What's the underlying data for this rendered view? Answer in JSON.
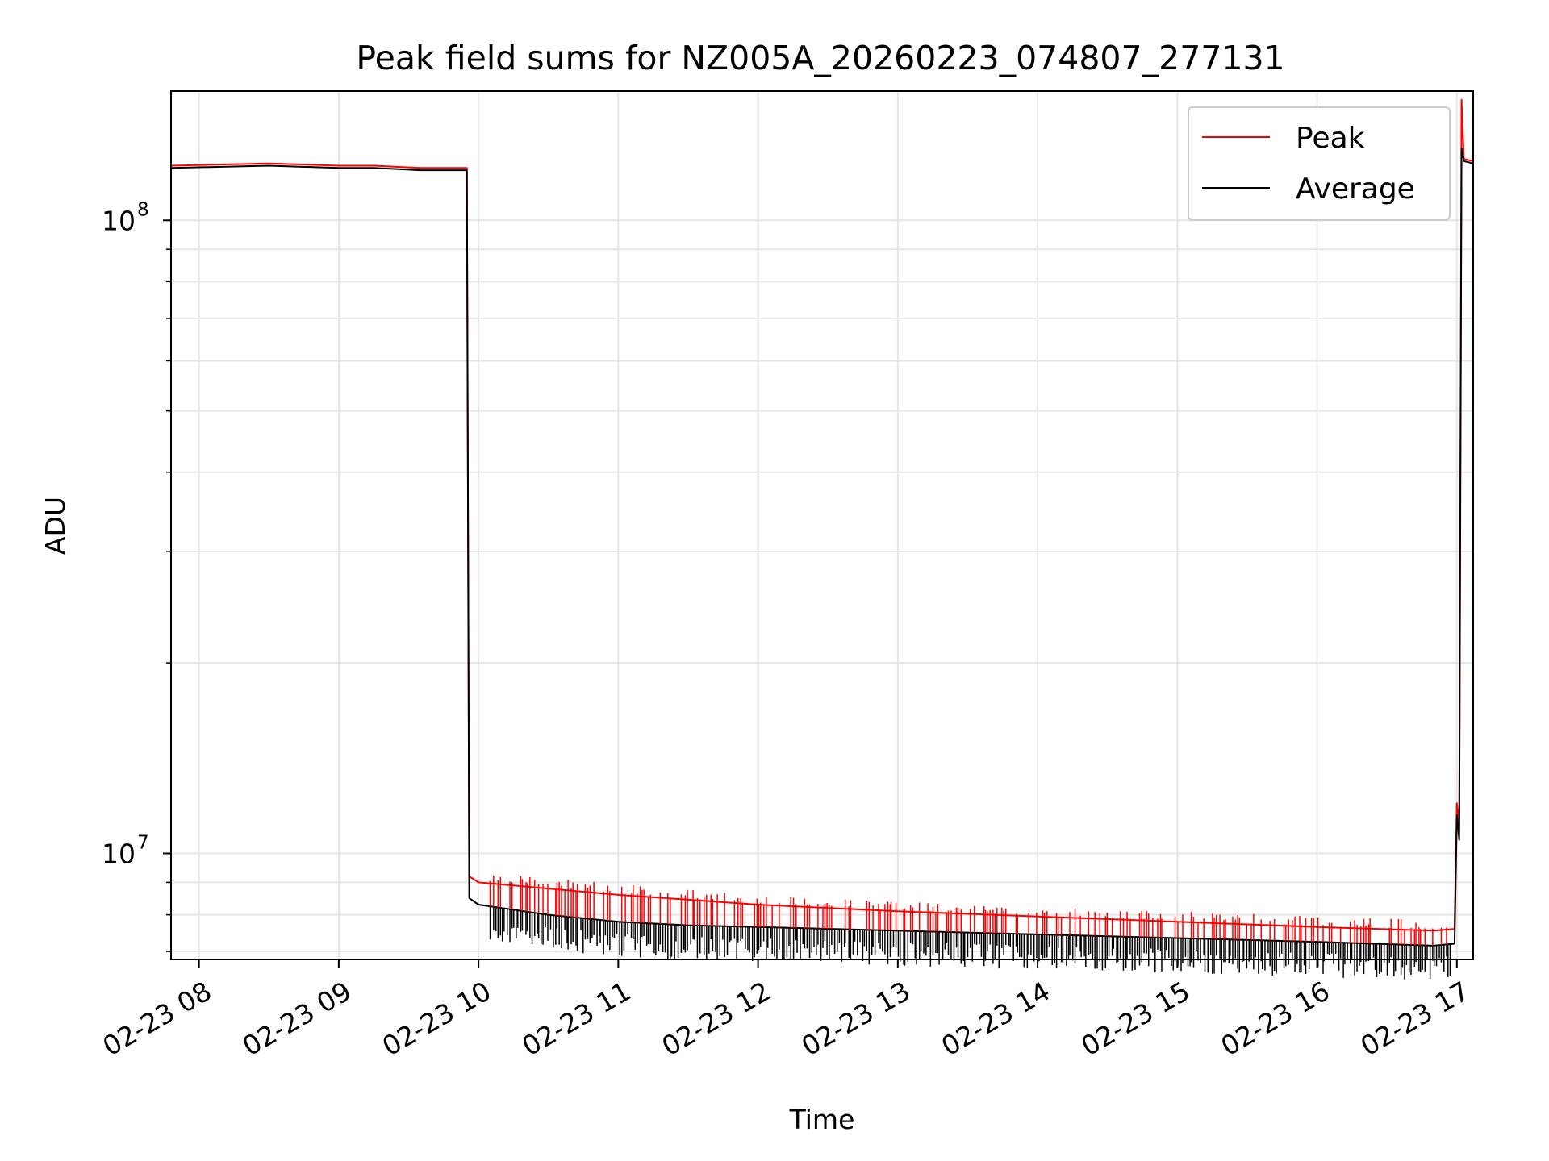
{
  "chart_data": {
    "type": "line",
    "title": "Peak field sums for NZ005A_20260223_074807_277131",
    "xlabel": "Time",
    "ylabel": "ADU",
    "y_scale": "log",
    "ylim": [
      6800000,
      160000000
    ],
    "xlim": [
      "2026-02-23 07:48",
      "2026-02-23 17:07"
    ],
    "x_ticks": [
      "02-23 08",
      "02-23 09",
      "02-23 10",
      "02-23 11",
      "02-23 12",
      "02-23 13",
      "02-23 14",
      "02-23 15",
      "02-23 16",
      "02-23 17"
    ],
    "y_ticks": [
      {
        "label": "10",
        "exp": "7",
        "value": 10000000
      },
      {
        "label": "10",
        "exp": "8",
        "value": 100000000
      }
    ],
    "grid": true,
    "legend_position": "top-right",
    "series": [
      {
        "name": "Peak",
        "color": "#ff0000",
        "x": [
          "2026-02-23 07:48",
          "2026-02-23 08:30",
          "2026-02-23 09:00",
          "2026-02-23 09:15",
          "2026-02-23 09:35",
          "2026-02-23 09:55",
          "2026-02-23 09:56",
          "2026-02-23 10:00",
          "2026-02-23 10:30",
          "2026-02-23 11:00",
          "2026-02-23 11:30",
          "2026-02-23 12:00",
          "2026-02-23 13:00",
          "2026-02-23 14:00",
          "2026-02-23 15:00",
          "2026-02-23 16:00",
          "2026-02-23 16:50",
          "2026-02-23 16:59",
          "2026-02-23 17:00",
          "2026-02-23 17:01",
          "2026-02-23 17:02",
          "2026-02-23 17:03",
          "2026-02-23 17:07"
        ],
        "values": [
          122000000,
          123000000,
          122000000,
          122000000,
          121000000,
          121000000,
          9200000,
          9000000,
          8800000,
          8600000,
          8450000,
          8300000,
          8100000,
          7950000,
          7800000,
          7650000,
          7550000,
          7600000,
          12000000,
          11000000,
          155000000,
          125000000,
          124000000
        ]
      },
      {
        "name": "Average",
        "color": "#000000",
        "x": [
          "2026-02-23 07:48",
          "2026-02-23 08:30",
          "2026-02-23 09:00",
          "2026-02-23 09:15",
          "2026-02-23 09:35",
          "2026-02-23 09:55",
          "2026-02-23 09:56",
          "2026-02-23 10:00",
          "2026-02-23 10:30",
          "2026-02-23 11:00",
          "2026-02-23 11:30",
          "2026-02-23 12:00",
          "2026-02-23 13:00",
          "2026-02-23 14:00",
          "2026-02-23 15:00",
          "2026-02-23 16:00",
          "2026-02-23 16:50",
          "2026-02-23 16:59",
          "2026-02-23 17:00",
          "2026-02-23 17:01",
          "2026-02-23 17:02",
          "2026-02-23 17:03",
          "2026-02-23 17:07"
        ],
        "values": [
          121000000,
          122000000,
          121000000,
          121000000,
          120000000,
          120000000,
          8500000,
          8300000,
          8000000,
          7800000,
          7700000,
          7650000,
          7550000,
          7450000,
          7350000,
          7250000,
          7150000,
          7200000,
          11500000,
          10500000,
          130000000,
          124000000,
          123000000
        ]
      }
    ]
  }
}
